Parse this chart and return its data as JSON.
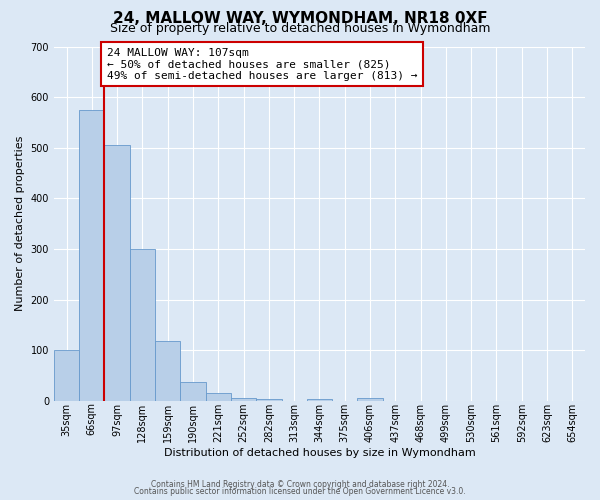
{
  "title": "24, MALLOW WAY, WYMONDHAM, NR18 0XF",
  "subtitle": "Size of property relative to detached houses in Wymondham",
  "xlabel": "Distribution of detached houses by size in Wymondham",
  "ylabel": "Number of detached properties",
  "footer_line1": "Contains HM Land Registry data © Crown copyright and database right 2024.",
  "footer_line2": "Contains public sector information licensed under the Open Government Licence v3.0.",
  "bin_labels": [
    "35sqm",
    "66sqm",
    "97sqm",
    "128sqm",
    "159sqm",
    "190sqm",
    "221sqm",
    "252sqm",
    "282sqm",
    "313sqm",
    "344sqm",
    "375sqm",
    "406sqm",
    "437sqm",
    "468sqm",
    "499sqm",
    "530sqm",
    "561sqm",
    "592sqm",
    "623sqm",
    "654sqm"
  ],
  "bar_values": [
    100,
    575,
    505,
    300,
    118,
    38,
    15,
    7,
    5,
    0,
    5,
    0,
    7,
    0,
    0,
    0,
    0,
    0,
    0,
    0,
    0
  ],
  "bar_color": "#b8cfe8",
  "bar_edge_color": "#6699cc",
  "marker_label_line1": "24 MALLOW WAY: 107sqm",
  "marker_label_line2": "← 50% of detached houses are smaller (825)",
  "marker_label_line3": "49% of semi-detached houses are larger (813) →",
  "marker_color": "#cc0000",
  "box_edge_color": "#cc0000",
  "ylim": [
    0,
    700
  ],
  "yticks": [
    0,
    100,
    200,
    300,
    400,
    500,
    600,
    700
  ],
  "bg_color": "#dce8f5",
  "grid_color": "#ffffff",
  "title_fontsize": 11,
  "subtitle_fontsize": 9,
  "annotation_fontsize": 8,
  "axis_label_fontsize": 8,
  "tick_fontsize": 7
}
